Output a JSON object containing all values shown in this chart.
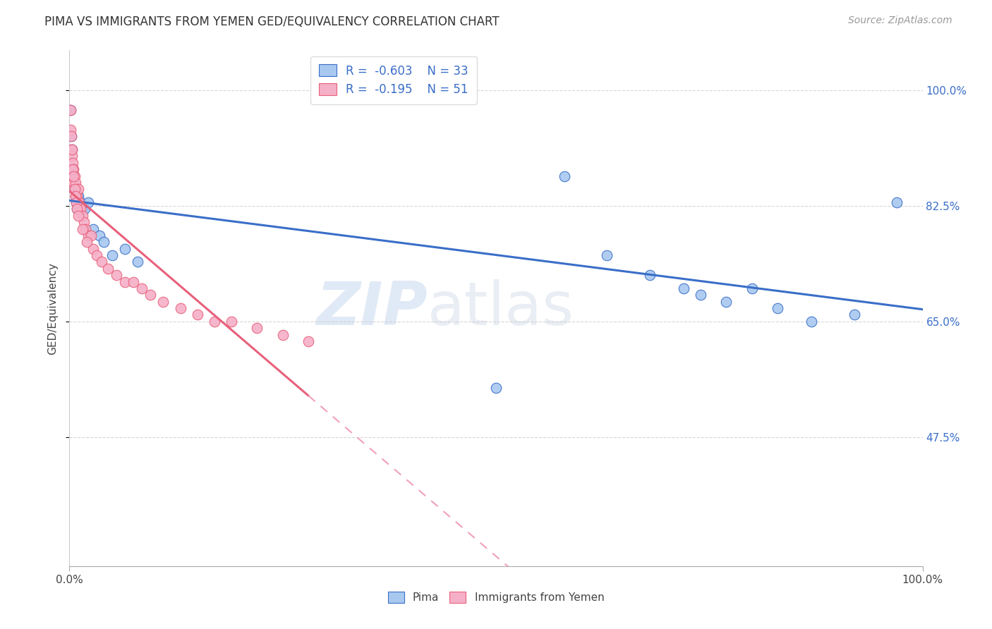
{
  "title": "PIMA VS IMMIGRANTS FROM YEMEN GED/EQUIVALENCY CORRELATION CHART",
  "source": "Source: ZipAtlas.com",
  "ylabel": "GED/Equivalency",
  "legend_label1": "Pima",
  "legend_label2": "Immigrants from Yemen",
  "r1": "-0.603",
  "n1": "33",
  "r2": "-0.195",
  "n2": "51",
  "xlim": [
    0.0,
    1.0
  ],
  "ylim": [
    0.28,
    1.06
  ],
  "yticks": [
    0.475,
    0.65,
    0.825,
    1.0
  ],
  "ytick_labels": [
    "47.5%",
    "65.0%",
    "82.5%",
    "100.0%"
  ],
  "xtick_labels": [
    "0.0%",
    "100.0%"
  ],
  "color_blue": "#A8C8F0",
  "color_pink": "#F5B0C8",
  "color_blue_line": "#3A6EC8",
  "color_pink_line": "#E8607A",
  "color_pink_dashed": "#F0A0B8",
  "watermark_zip": "ZIP",
  "watermark_atlas": "atlas",
  "pima_x": [
    0.001,
    0.002,
    0.003,
    0.004,
    0.005,
    0.006,
    0.007,
    0.008,
    0.009,
    0.01,
    0.011,
    0.013,
    0.015,
    0.018,
    0.022,
    0.028,
    0.035,
    0.04,
    0.05,
    0.065,
    0.08,
    0.5,
    0.58,
    0.63,
    0.68,
    0.72,
    0.74,
    0.77,
    0.8,
    0.83,
    0.87,
    0.92,
    0.97
  ],
  "pima_y": [
    0.97,
    0.93,
    0.91,
    0.88,
    0.87,
    0.85,
    0.84,
    0.83,
    0.82,
    0.84,
    0.83,
    0.83,
    0.82,
    0.82,
    0.83,
    0.79,
    0.78,
    0.77,
    0.75,
    0.76,
    0.74,
    0.55,
    0.87,
    0.75,
    0.72,
    0.7,
    0.69,
    0.68,
    0.7,
    0.67,
    0.65,
    0.66,
    0.83
  ],
  "yemen_x": [
    0.001,
    0.001,
    0.002,
    0.003,
    0.003,
    0.004,
    0.004,
    0.005,
    0.005,
    0.006,
    0.007,
    0.007,
    0.008,
    0.009,
    0.01,
    0.011,
    0.012,
    0.013,
    0.015,
    0.017,
    0.019,
    0.022,
    0.025,
    0.028,
    0.032,
    0.038,
    0.045,
    0.055,
    0.065,
    0.075,
    0.085,
    0.095,
    0.11,
    0.13,
    0.15,
    0.17,
    0.19,
    0.22,
    0.25,
    0.28,
    0.002,
    0.003,
    0.004,
    0.005,
    0.006,
    0.007,
    0.008,
    0.009,
    0.01,
    0.015,
    0.02
  ],
  "yemen_y": [
    0.97,
    0.94,
    0.91,
    0.9,
    0.88,
    0.89,
    0.86,
    0.88,
    0.86,
    0.87,
    0.86,
    0.84,
    0.85,
    0.84,
    0.85,
    0.83,
    0.82,
    0.82,
    0.81,
    0.8,
    0.79,
    0.78,
    0.78,
    0.76,
    0.75,
    0.74,
    0.73,
    0.72,
    0.71,
    0.71,
    0.7,
    0.69,
    0.68,
    0.67,
    0.66,
    0.65,
    0.65,
    0.64,
    0.63,
    0.62,
    0.93,
    0.91,
    0.88,
    0.87,
    0.85,
    0.84,
    0.83,
    0.82,
    0.81,
    0.79,
    0.77
  ]
}
